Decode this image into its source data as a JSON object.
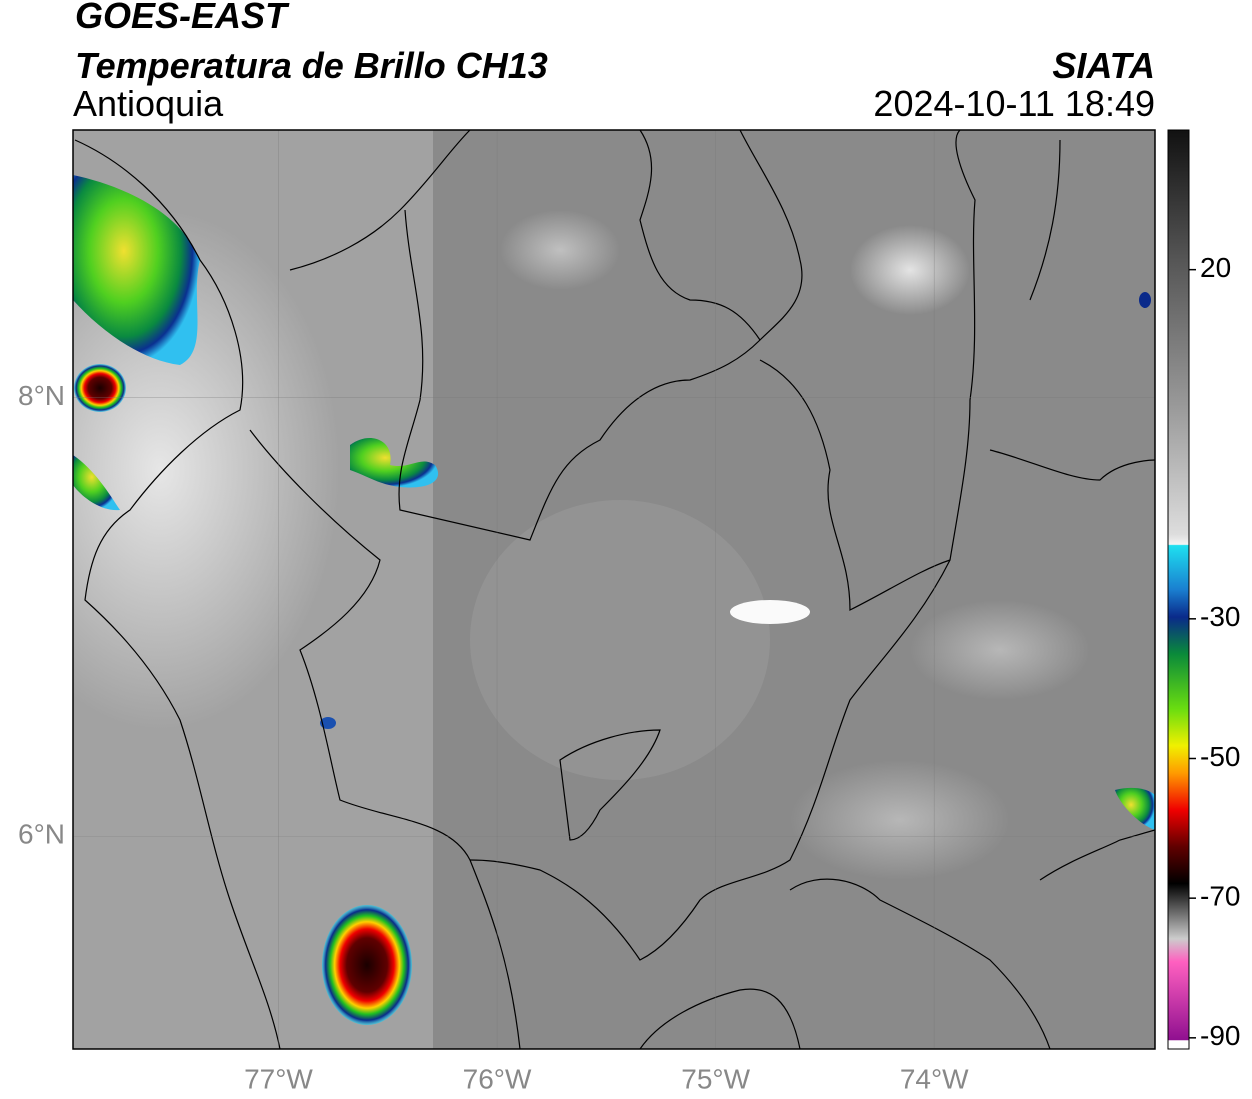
{
  "header": {
    "title": "GOES-EAST",
    "subtitle": "Temperatura de Brillo CH13",
    "region": "Antioquia",
    "source": "SIATA",
    "datetime": "2024-10-11 18:49"
  },
  "map": {
    "lonlim": [
      -77.94,
      -72.99
    ],
    "latlim": [
      5.03,
      9.22
    ],
    "lon_ticks": [
      {
        "value": -77,
        "label": "77°W"
      },
      {
        "value": -76,
        "label": "76°W"
      },
      {
        "value": -75,
        "label": "75°W"
      },
      {
        "value": -74,
        "label": "74°W"
      }
    ],
    "lat_ticks": [
      {
        "value": 8,
        "label": "8°N"
      },
      {
        "value": 6,
        "label": "6°N"
      }
    ]
  },
  "colorbar": {
    "lim": [
      -91.6,
      40
    ],
    "ticks": [
      20,
      -30,
      -50,
      -70,
      -90
    ]
  }
}
